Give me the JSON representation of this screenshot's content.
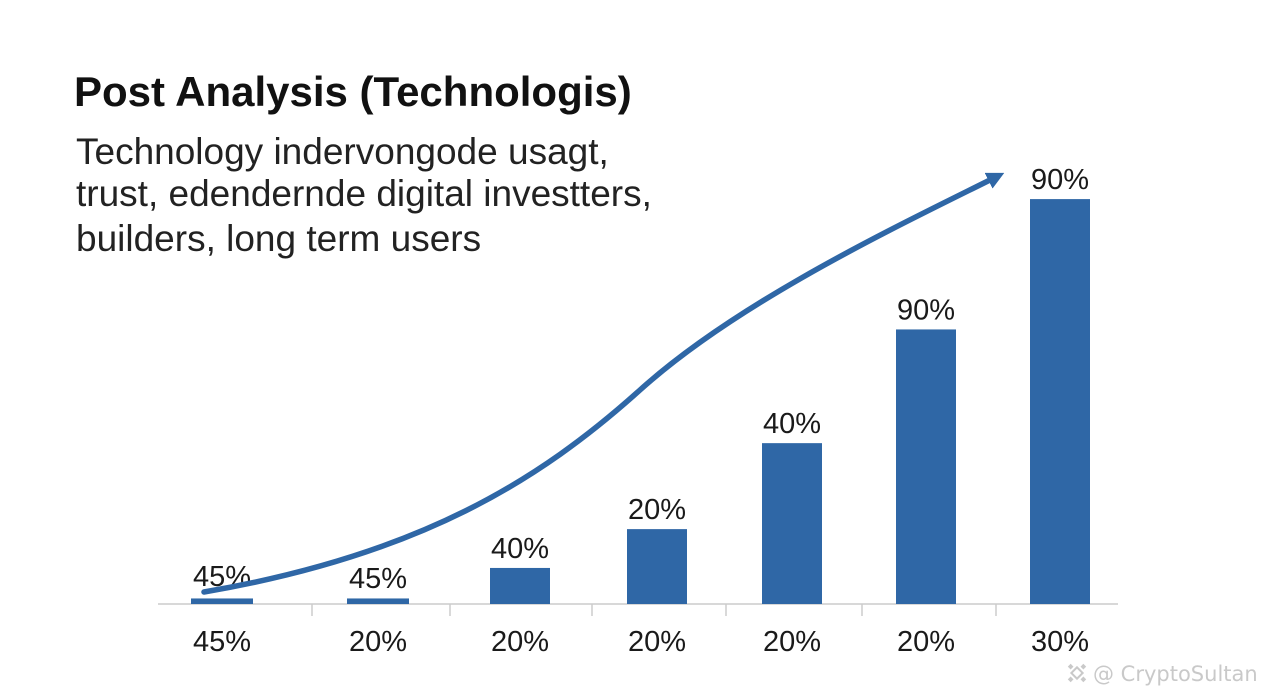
{
  "chart_data": {
    "type": "bar",
    "title": "Post Analysis (Technologis)",
    "subtitle": [
      "Technology indervongode usagt,",
      "trust, edendernde digital investters,",
      "builders, long term users"
    ],
    "categories": [
      "45%",
      "20%",
      "20%",
      "20%",
      "20%",
      "20%",
      "30%"
    ],
    "values": [
      2,
      2,
      13,
      27,
      58,
      99,
      146
    ],
    "data_labels": [
      "45%",
      "45%",
      "40%",
      "20%",
      "40%",
      "90%",
      "90%"
    ],
    "xlabel": "",
    "ylabel": "",
    "ylim": [
      0,
      150
    ],
    "grid": false,
    "legend": "none",
    "trend_arrow": true,
    "colors": {
      "bar": "#2f67a6",
      "arrow": "#2f67a6",
      "axis": "#cccccc",
      "first_label": "#2f5a8c"
    }
  },
  "watermark": {
    "logo": "binance-logo-icon",
    "text": "@ CryptoSultan"
  }
}
